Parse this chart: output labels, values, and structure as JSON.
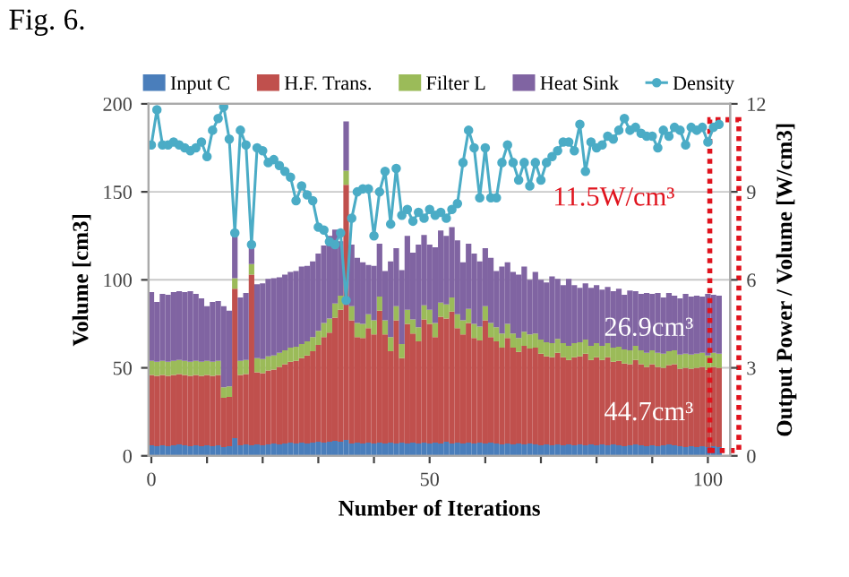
{
  "chart_data": {
    "type": "bar",
    "stacked": true,
    "title": "Fig. 6.",
    "xlabel": "Number of Iterations",
    "ylabel": "Volume [cm3]",
    "y2label": "Output Power / Volume [W/cm3]",
    "x": [
      0,
      1,
      2,
      3,
      4,
      5,
      6,
      7,
      8,
      9,
      10,
      11,
      12,
      13,
      14,
      15,
      16,
      17,
      18,
      19,
      20,
      21,
      22,
      23,
      24,
      25,
      26,
      27,
      28,
      29,
      30,
      31,
      32,
      33,
      34,
      35,
      36,
      37,
      38,
      39,
      40,
      41,
      42,
      43,
      44,
      45,
      46,
      47,
      48,
      49,
      50,
      51,
      52,
      53,
      54,
      55,
      56,
      57,
      58,
      59,
      60,
      61,
      62,
      63,
      64,
      65,
      66,
      67,
      68,
      69,
      70,
      71,
      72,
      73,
      74,
      75,
      76,
      77,
      78,
      79,
      80,
      81,
      82,
      83,
      84,
      85,
      86,
      87,
      88,
      89,
      90,
      91,
      92,
      93,
      94,
      95,
      96,
      97,
      98,
      99,
      100,
      101,
      102
    ],
    "series": [
      {
        "name": "Input C",
        "color": "#4a7ebb",
        "values": [
          6,
          5.5,
          6,
          5.5,
          6,
          6.5,
          6,
          5.5,
          6,
          5.5,
          6,
          5.5,
          6,
          5,
          5.5,
          10,
          6,
          6.5,
          6,
          6.5,
          6,
          6.5,
          7,
          6.5,
          7,
          7.5,
          7,
          7.5,
          7,
          7.5,
          8,
          7.5,
          8,
          8.5,
          8,
          9,
          7,
          7.5,
          7,
          7.5,
          7,
          7.5,
          7,
          7.5,
          7,
          7.5,
          7,
          7.5,
          7,
          7.5,
          7,
          7.5,
          7,
          8,
          7,
          7.5,
          7,
          7.5,
          7,
          7.5,
          7,
          7.5,
          7,
          6.5,
          7,
          6.5,
          7,
          6.5,
          7,
          6.5,
          6,
          6.5,
          6,
          6.5,
          6,
          6.5,
          6,
          6.5,
          6,
          6.5,
          6,
          6.5,
          6,
          6.5,
          6,
          5.5,
          6,
          6.5,
          6,
          5.5,
          6,
          5.5,
          6,
          6.5,
          6,
          5.5,
          5,
          5.5,
          5,
          5.5,
          5,
          5.5,
          5
        ]
      },
      {
        "name": "H.F. Trans.",
        "color": "#c0504d",
        "values": [
          40,
          40,
          40,
          40,
          40,
          40,
          40,
          40,
          40,
          40,
          40,
          40,
          40,
          28,
          28,
          85,
          40,
          40,
          97,
          41,
          41,
          42,
          42,
          44,
          45,
          46,
          47,
          48,
          50,
          52,
          55,
          60,
          62,
          70,
          75,
          145,
          70,
          60,
          60,
          65,
          62,
          75,
          62,
          52,
          70,
          48,
          68,
          62,
          58,
          70,
          68,
          60,
          72,
          70,
          75,
          65,
          62,
          68,
          60,
          58,
          70,
          60,
          58,
          55,
          60,
          55,
          52,
          56,
          54,
          55,
          52,
          50,
          50,
          52,
          50,
          48,
          50,
          50,
          52,
          48,
          50,
          48,
          50,
          47,
          48,
          47,
          46,
          48,
          46,
          45,
          46,
          45,
          44,
          45,
          46,
          44,
          45,
          44,
          45,
          45,
          44,
          45,
          45
        ]
      },
      {
        "name": "Filter L",
        "color": "#9bbb59",
        "values": [
          8,
          8,
          8,
          8,
          8,
          8,
          8,
          8,
          8,
          8,
          8,
          8,
          8,
          6,
          6,
          6,
          8,
          8,
          6,
          8,
          8,
          8,
          8,
          8,
          8,
          8,
          8,
          8,
          8,
          8,
          8,
          8,
          8,
          8,
          8,
          8,
          8,
          8,
          8,
          8,
          8,
          8,
          8,
          8,
          8,
          8,
          8,
          8,
          8,
          8,
          8,
          8,
          8,
          8,
          8,
          8,
          8,
          8,
          8,
          8,
          8,
          8,
          8,
          8,
          8,
          8,
          8,
          8,
          8,
          8,
          8,
          8,
          8,
          8,
          8,
          8,
          8,
          8,
          8,
          8,
          8,
          8,
          8,
          8,
          8,
          8,
          8,
          8,
          8,
          8,
          8,
          8,
          8,
          8,
          8,
          8,
          8,
          8,
          8,
          8,
          8,
          8,
          8
        ]
      },
      {
        "name": "Heat Sink",
        "color": "#8064a2",
        "values": [
          39,
          34,
          38,
          38,
          39,
          39,
          39,
          40,
          38,
          36,
          31,
          34,
          34,
          46,
          43,
          27,
          36,
          38,
          9,
          42,
          43,
          44,
          44,
          43,
          43,
          43,
          43,
          44,
          43,
          43,
          44,
          44,
          47,
          42,
          31,
          28,
          35,
          37,
          35,
          28,
          31,
          30,
          28,
          43,
          33,
          42,
          42,
          38,
          47,
          40,
          37,
          43,
          41,
          39,
          40,
          42,
          33,
          37,
          40,
          37,
          33,
          37,
          32,
          38,
          35,
          35,
          36,
          37,
          31,
          35,
          34,
          34,
          38,
          34,
          33,
          38,
          33,
          31,
          32,
          33,
          33,
          32,
          32,
          32,
          33,
          31,
          34,
          31,
          32,
          34,
          32,
          34,
          32,
          33,
          31,
          32,
          34,
          33,
          33,
          32,
          35,
          33,
          33
        ]
      },
      {
        "name": "Density",
        "type": "line",
        "axis": "y2",
        "color": "#4bacc6",
        "marker": "circle",
        "values": [
          10.6,
          11.8,
          10.6,
          10.6,
          10.7,
          10.6,
          10.5,
          10.4,
          10.5,
          10.7,
          10.2,
          11.1,
          11.5,
          11.9,
          10.8,
          7.6,
          11.1,
          10.6,
          7.2,
          10.5,
          10.4,
          10.0,
          10.1,
          9.9,
          9.7,
          9.5,
          8.7,
          9.2,
          8.9,
          8.7,
          7.8,
          7.7,
          7.3,
          7.2,
          7.6,
          5.3,
          8.1,
          9.0,
          9.1,
          9.1,
          7.5,
          9.0,
          9.7,
          7.9,
          9.8,
          8.2,
          8.4,
          8.0,
          8.3,
          8.1,
          8.4,
          8.2,
          8.3,
          8.1,
          8.4,
          8.6,
          10.0,
          11.1,
          10.5,
          8.8,
          10.5,
          8.8,
          8.8,
          10.0,
          10.6,
          10.0,
          9.4,
          10.0,
          9.2,
          10.0,
          9.4,
          10.0,
          10.2,
          10.4,
          10.7,
          10.7,
          10.4,
          11.3,
          9.7,
          10.7,
          10.5,
          10.6,
          10.9,
          10.8,
          11.1,
          11.5,
          11.1,
          11.2,
          11.0,
          10.9,
          10.9,
          10.5,
          11.1,
          10.9,
          11.2,
          11.1,
          10.6,
          11.2,
          11.1,
          11.2,
          10.7,
          11.2,
          11.3
        ]
      }
    ],
    "xlim": [
      -0.5,
      104
    ],
    "xticks": [
      0,
      {
        "value": 10,
        "label": null
      },
      {
        "value": 20,
        "label": null
      },
      {
        "value": 30,
        "label": null
      },
      {
        "value": 40,
        "label": null
      },
      50,
      {
        "value": 60,
        "label": null
      },
      {
        "value": 70,
        "label": null
      },
      {
        "value": 80,
        "label": null
      },
      {
        "value": 90,
        "label": null
      },
      100
    ],
    "ylim": [
      0,
      200
    ],
    "yticks": [
      0,
      50,
      100,
      150,
      200
    ],
    "y2lim": [
      0,
      12
    ],
    "y2ticks": [
      0,
      3,
      6,
      9,
      12
    ],
    "grid": "y",
    "legend": "top",
    "annotations": [
      "11.5W/cm³",
      "26.9cm³",
      "44.7cm³"
    ]
  }
}
